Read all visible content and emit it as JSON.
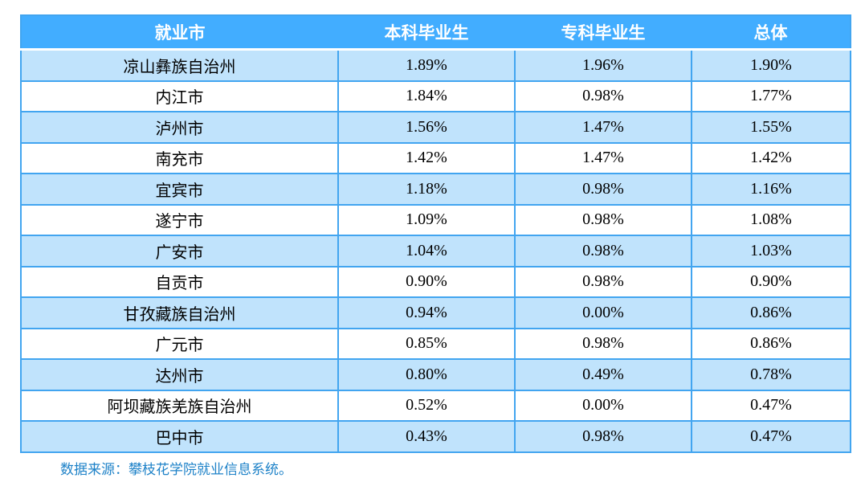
{
  "table": {
    "columns": [
      "就业市",
      "本科毕业生",
      "专科毕业生",
      "总体"
    ],
    "rows": [
      {
        "city": "凉山彝族自治州",
        "undergrad": "1.89%",
        "college": "1.96%",
        "overall": "1.90%"
      },
      {
        "city": "内江市",
        "undergrad": "1.84%",
        "college": "0.98%",
        "overall": "1.77%"
      },
      {
        "city": "泸州市",
        "undergrad": "1.56%",
        "college": "1.47%",
        "overall": "1.55%"
      },
      {
        "city": "南充市",
        "undergrad": "1.42%",
        "college": "1.47%",
        "overall": "1.42%"
      },
      {
        "city": "宜宾市",
        "undergrad": "1.18%",
        "college": "0.98%",
        "overall": "1.16%"
      },
      {
        "city": "遂宁市",
        "undergrad": "1.09%",
        "college": "0.98%",
        "overall": "1.08%"
      },
      {
        "city": "广安市",
        "undergrad": "1.04%",
        "college": "0.98%",
        "overall": "1.03%"
      },
      {
        "city": "自贡市",
        "undergrad": "0.90%",
        "college": "0.98%",
        "overall": "0.90%"
      },
      {
        "city": "甘孜藏族自治州",
        "undergrad": "0.94%",
        "college": "0.00%",
        "overall": "0.86%"
      },
      {
        "city": "广元市",
        "undergrad": "0.85%",
        "college": "0.98%",
        "overall": "0.86%"
      },
      {
        "city": "达州市",
        "undergrad": "0.80%",
        "college": "0.49%",
        "overall": "0.78%"
      },
      {
        "city": "阿坝藏族羌族自治州",
        "undergrad": "0.52%",
        "college": "0.00%",
        "overall": "0.47%"
      },
      {
        "city": "巴中市",
        "undergrad": "0.43%",
        "college": "0.98%",
        "overall": "0.47%"
      }
    ]
  },
  "footer": {
    "source_note": "数据来源：攀枝花学院就业信息系统。"
  },
  "colors": {
    "header_bg": "#42adff",
    "header_text": "#ffffff",
    "row_alt_bg": "#c0e3fc",
    "row_bg": "#ffffff",
    "border": "#42a5f0",
    "body_text": "#000000",
    "footer_text": "#1e82c8"
  }
}
